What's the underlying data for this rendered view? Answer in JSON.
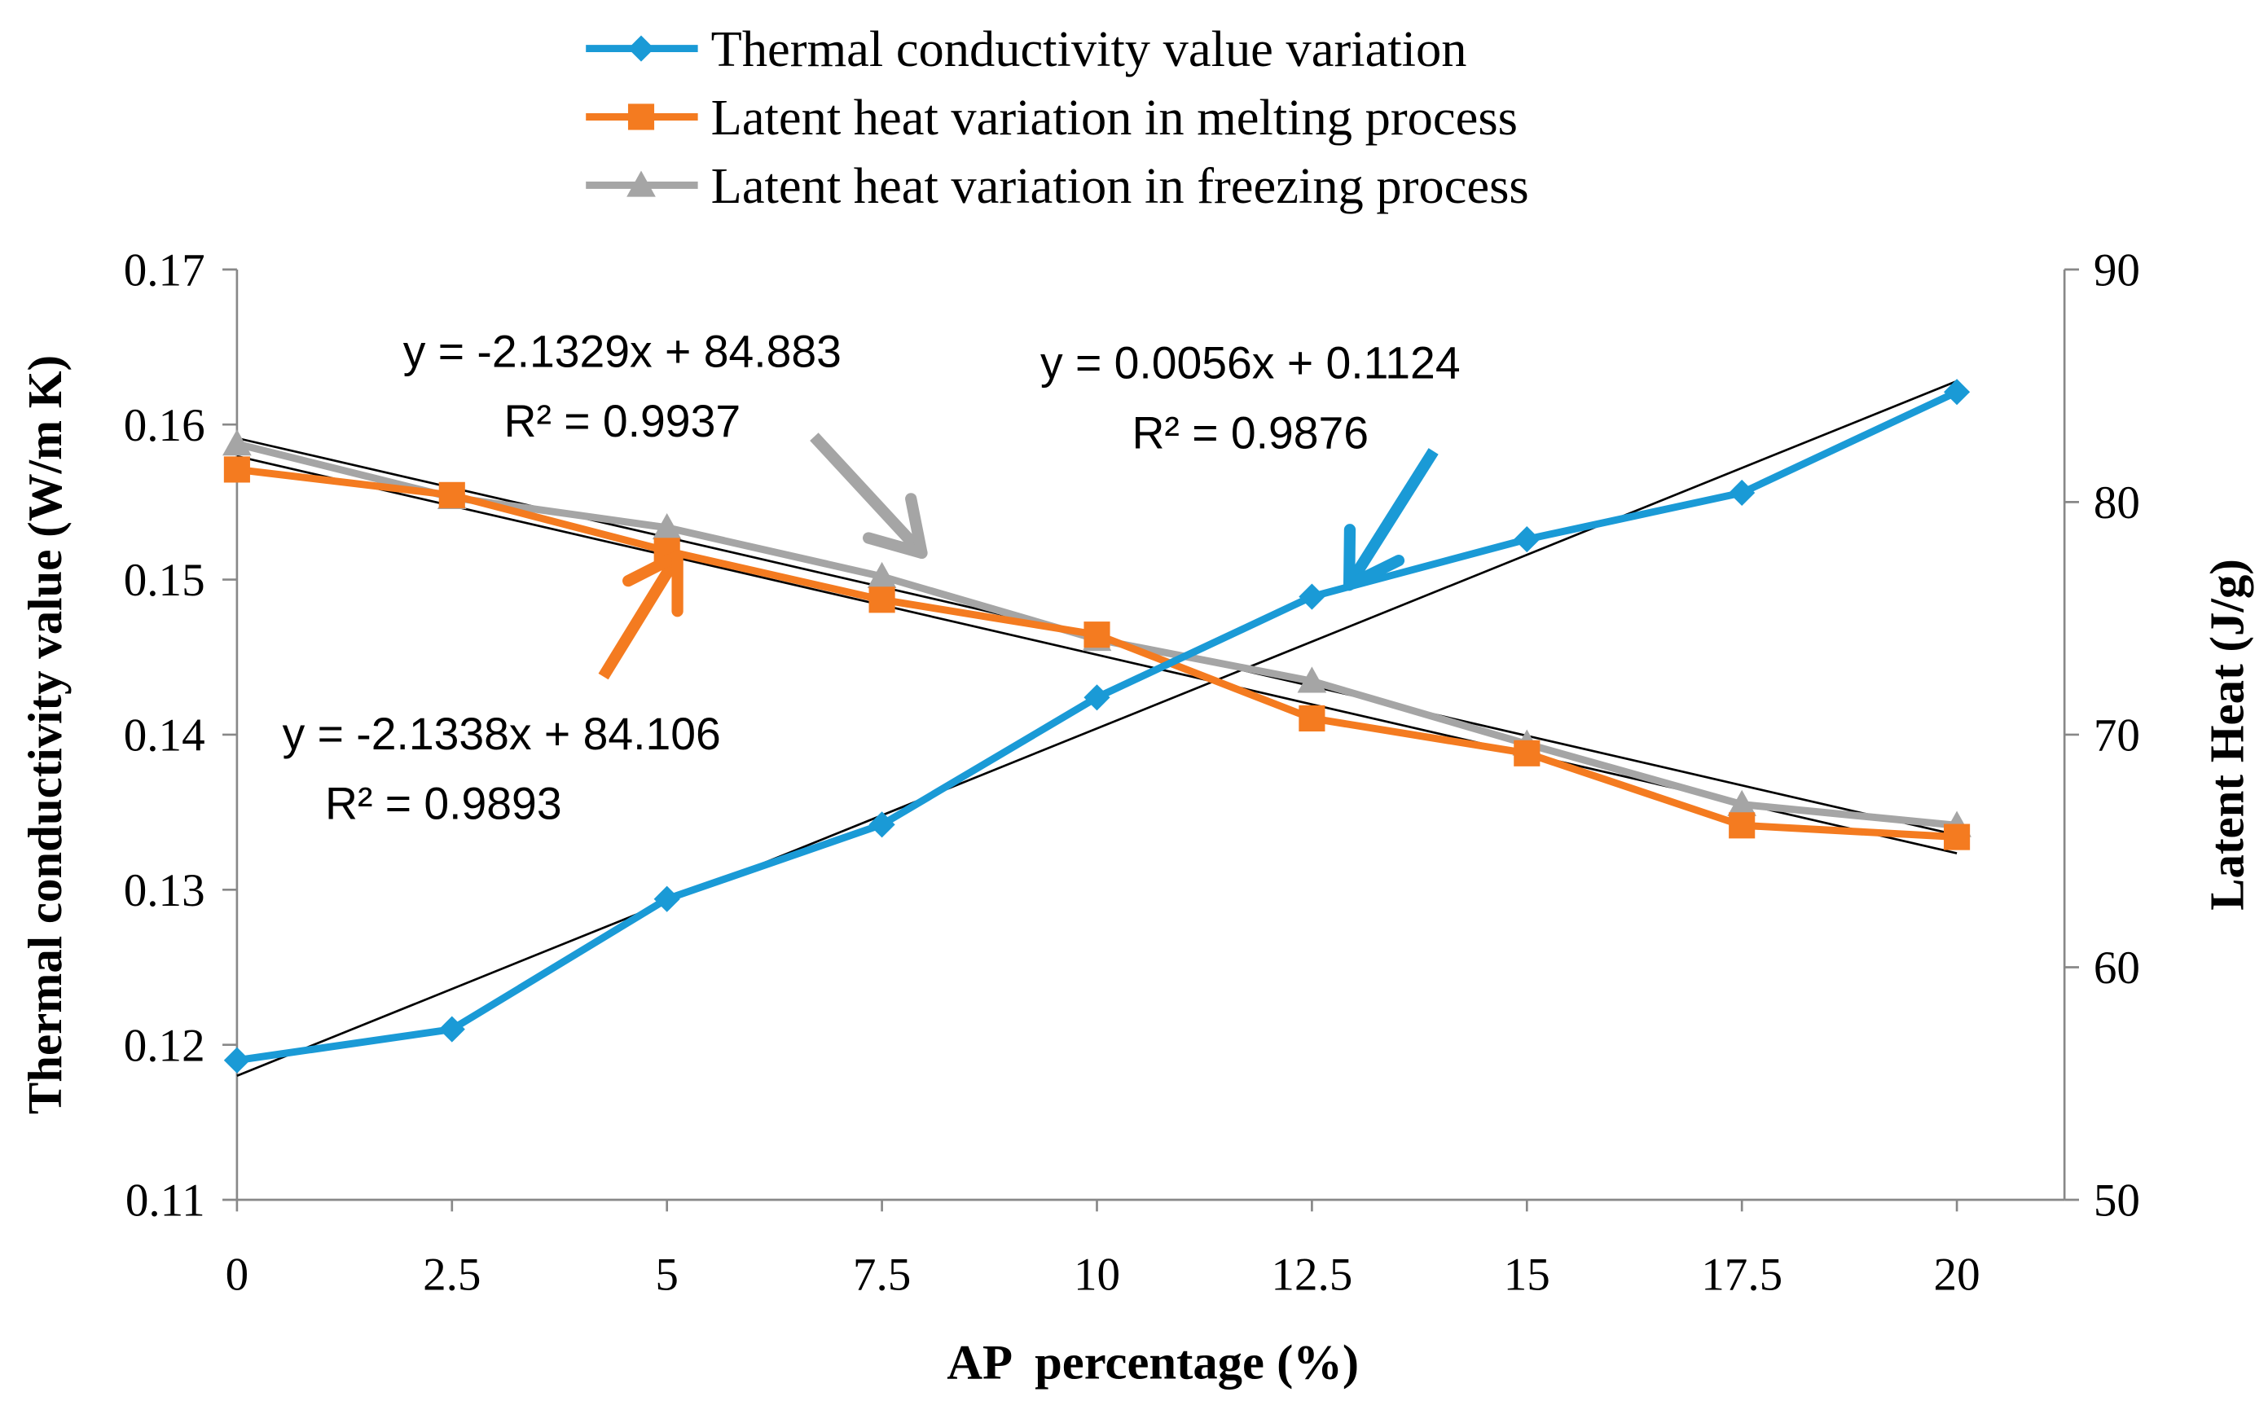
{
  "chart_data": {
    "type": "line",
    "title": "",
    "xlabel": "AP  percentage (%)",
    "ylabel_left": "Thermal conductivity value (W/m K)",
    "ylabel_right": "Latent Heat (J/g)",
    "categories": [
      "0",
      "2.5",
      "5",
      "7.5",
      "10",
      "12.5",
      "15",
      "17.5",
      "20"
    ],
    "x": [
      0,
      2.5,
      5,
      7.5,
      10,
      12.5,
      15,
      17.5,
      20
    ],
    "ylim_left": [
      0.11,
      0.17
    ],
    "ylim_right": [
      50,
      90
    ],
    "yticks_left": [
      "0.11",
      "0.12",
      "0.13",
      "0.14",
      "0.15",
      "0.16",
      "0.17"
    ],
    "yticks_right": [
      "50",
      "60",
      "70",
      "80",
      "90"
    ],
    "grid": false,
    "legend_position": "top-center",
    "series": [
      {
        "name": "Thermal conductivity value variation",
        "axis": "left",
        "color": "#1a9ad6",
        "marker": "diamond",
        "values": [
          0.119,
          0.121,
          0.1294,
          0.1342,
          0.1424,
          0.1489,
          0.1526,
          0.1556,
          0.1621
        ],
        "trend": {
          "slope": 0.0056,
          "intercept": 0.1124
        },
        "equation": "y = 0.0056x + 0.1124",
        "r2": "R² = 0.9876"
      },
      {
        "name": "Latent heat variation in melting process",
        "axis": "right",
        "color": "#f47b20",
        "marker": "square",
        "values": [
          81.4,
          80.3,
          77.9,
          75.8,
          74.3,
          70.7,
          69.2,
          66.1,
          65.6
        ],
        "trend": {
          "slope": -2.1338,
          "intercept": 84.106
        },
        "equation": "y = -2.1338x + 84.106",
        "r2": "R² = 0.9893"
      },
      {
        "name": "Latent heat variation in freezing process",
        "axis": "right",
        "color": "#a5a5a5",
        "marker": "triangle",
        "values": [
          82.5,
          80.2,
          78.9,
          76.8,
          74.1,
          72.3,
          69.6,
          67.0,
          66.1
        ],
        "trend": {
          "slope": -2.1329,
          "intercept": 84.883
        },
        "equation": "y = -2.1329x + 84.883",
        "r2": "R² = 0.9937"
      }
    ]
  }
}
